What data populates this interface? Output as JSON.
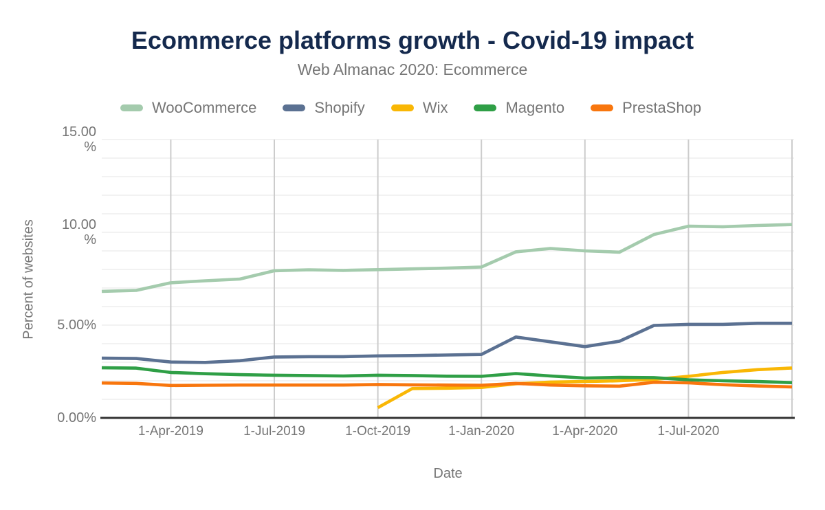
{
  "chart_data": {
    "type": "line",
    "title": "Ecommerce platforms growth - Covid-19 impact",
    "subtitle": "Web Almanac 2020: Ecommerce",
    "xlabel": "Date",
    "ylabel": "Percent of websites",
    "ylim": [
      0,
      15
    ],
    "grid": {
      "horizontal_step_percent": 1,
      "vertical_on_quarters": true,
      "legend_position": "top-left"
    },
    "x": [
      "1-Feb-2019",
      "1-Mar-2019",
      "1-Apr-2019",
      "1-May-2019",
      "1-Jun-2019",
      "1-Jul-2019",
      "1-Aug-2019",
      "1-Sep-2019",
      "1-Oct-2019",
      "1-Nov-2019",
      "1-Dec-2019",
      "1-Jan-2020",
      "1-Feb-2020",
      "1-Mar-2020",
      "1-Apr-2020",
      "1-May-2020",
      "1-Jun-2020",
      "1-Jul-2020",
      "1-Aug-2020",
      "1-Sep-2020",
      "1-Oct-2020"
    ],
    "x_ticks": [
      {
        "month": "1-Apr-2019",
        "label": "1-Apr-2019"
      },
      {
        "month": "1-Jul-2019",
        "label": "1-Jul-2019"
      },
      {
        "month": "1-Oct-2019",
        "label": "1-Oct-2019"
      },
      {
        "month": "1-Jan-2020",
        "label": "1-Jan-2020"
      },
      {
        "month": "1-Apr-2020",
        "label": "1-Apr-2020"
      },
      {
        "month": "1-Jul-2020",
        "label": "1-Jul-2020"
      },
      {
        "month": "1-Oct-2020",
        "label": ""
      }
    ],
    "y_ticks": [
      {
        "value": 0,
        "label": "0.00%"
      },
      {
        "value": 5,
        "label": "5.00%"
      },
      {
        "value": 10,
        "label": "10.00\n%"
      },
      {
        "value": 15,
        "label": "15.00\n%"
      }
    ],
    "series": [
      {
        "name": "WooCommerce",
        "color": "#a4cbad",
        "values": [
          6.82,
          6.87,
          7.28,
          7.39,
          7.48,
          7.93,
          7.98,
          7.95,
          7.99,
          8.03,
          8.07,
          8.13,
          8.95,
          9.13,
          9.0,
          8.93,
          9.88,
          10.33,
          10.3,
          10.37,
          10.42
        ]
      },
      {
        "name": "Shopify",
        "color": "#5b7192",
        "values": [
          3.22,
          3.2,
          3.01,
          2.99,
          3.08,
          3.28,
          3.3,
          3.3,
          3.34,
          3.36,
          3.39,
          3.42,
          4.36,
          4.1,
          3.84,
          4.13,
          4.98,
          5.04,
          5.04,
          5.1,
          5.1
        ]
      },
      {
        "name": "Wix",
        "color": "#f9b705",
        "values": [
          null,
          null,
          null,
          null,
          null,
          null,
          null,
          null,
          0.55,
          1.58,
          1.6,
          1.64,
          1.84,
          1.93,
          1.96,
          2.0,
          2.07,
          2.24,
          2.45,
          2.6,
          2.69
        ]
      },
      {
        "name": "Magento",
        "color": "#2f9f46",
        "values": [
          2.7,
          2.68,
          2.45,
          2.38,
          2.33,
          2.3,
          2.28,
          2.26,
          2.3,
          2.28,
          2.25,
          2.24,
          2.39,
          2.26,
          2.15,
          2.18,
          2.17,
          2.05,
          2.0,
          1.96,
          1.9
        ]
      },
      {
        "name": "PrestaShop",
        "color": "#f8760e",
        "values": [
          1.88,
          1.86,
          1.75,
          1.76,
          1.77,
          1.77,
          1.77,
          1.77,
          1.8,
          1.78,
          1.77,
          1.76,
          1.86,
          1.77,
          1.73,
          1.71,
          1.92,
          1.89,
          1.79,
          1.72,
          1.67
        ]
      }
    ],
    "colors": {
      "title": "#14294d",
      "axis_text": "#757575",
      "axis_line": "#333333",
      "grid_vertical": "#cccccc",
      "grid_horizontal": "#ededed"
    }
  }
}
